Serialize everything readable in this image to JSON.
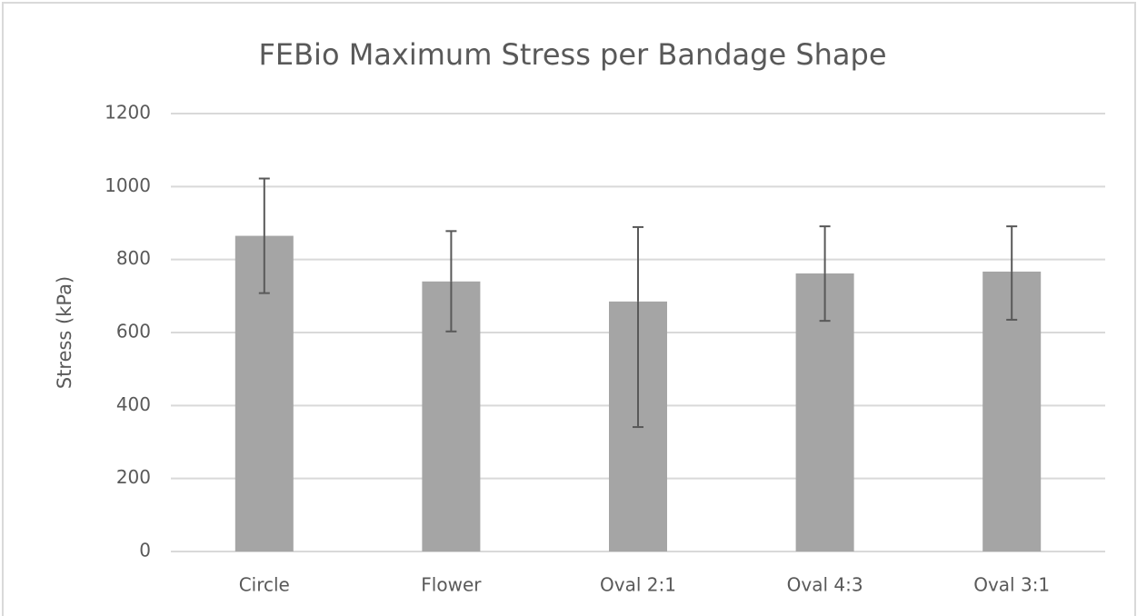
{
  "chart_data": {
    "type": "bar",
    "title": "FEBio Maximum Stress per Bandage Shape",
    "y_label": "Stress (kPa)",
    "categories": [
      "Circle",
      "Flower",
      "Oval 2:1",
      "Oval 4:3",
      "Oval 3:1"
    ],
    "values": [
      865,
      740,
      685,
      762,
      767
    ],
    "error_plus": [
      157,
      138,
      204,
      129,
      124
    ],
    "error_minus": [
      157,
      137,
      344,
      130,
      132
    ],
    "color": "#a5a5a5",
    "error_color": "#595959",
    "ylim": [
      0,
      1200
    ],
    "yticks": [
      0,
      200,
      400,
      600,
      800,
      1000,
      1200
    ],
    "grid": true
  }
}
